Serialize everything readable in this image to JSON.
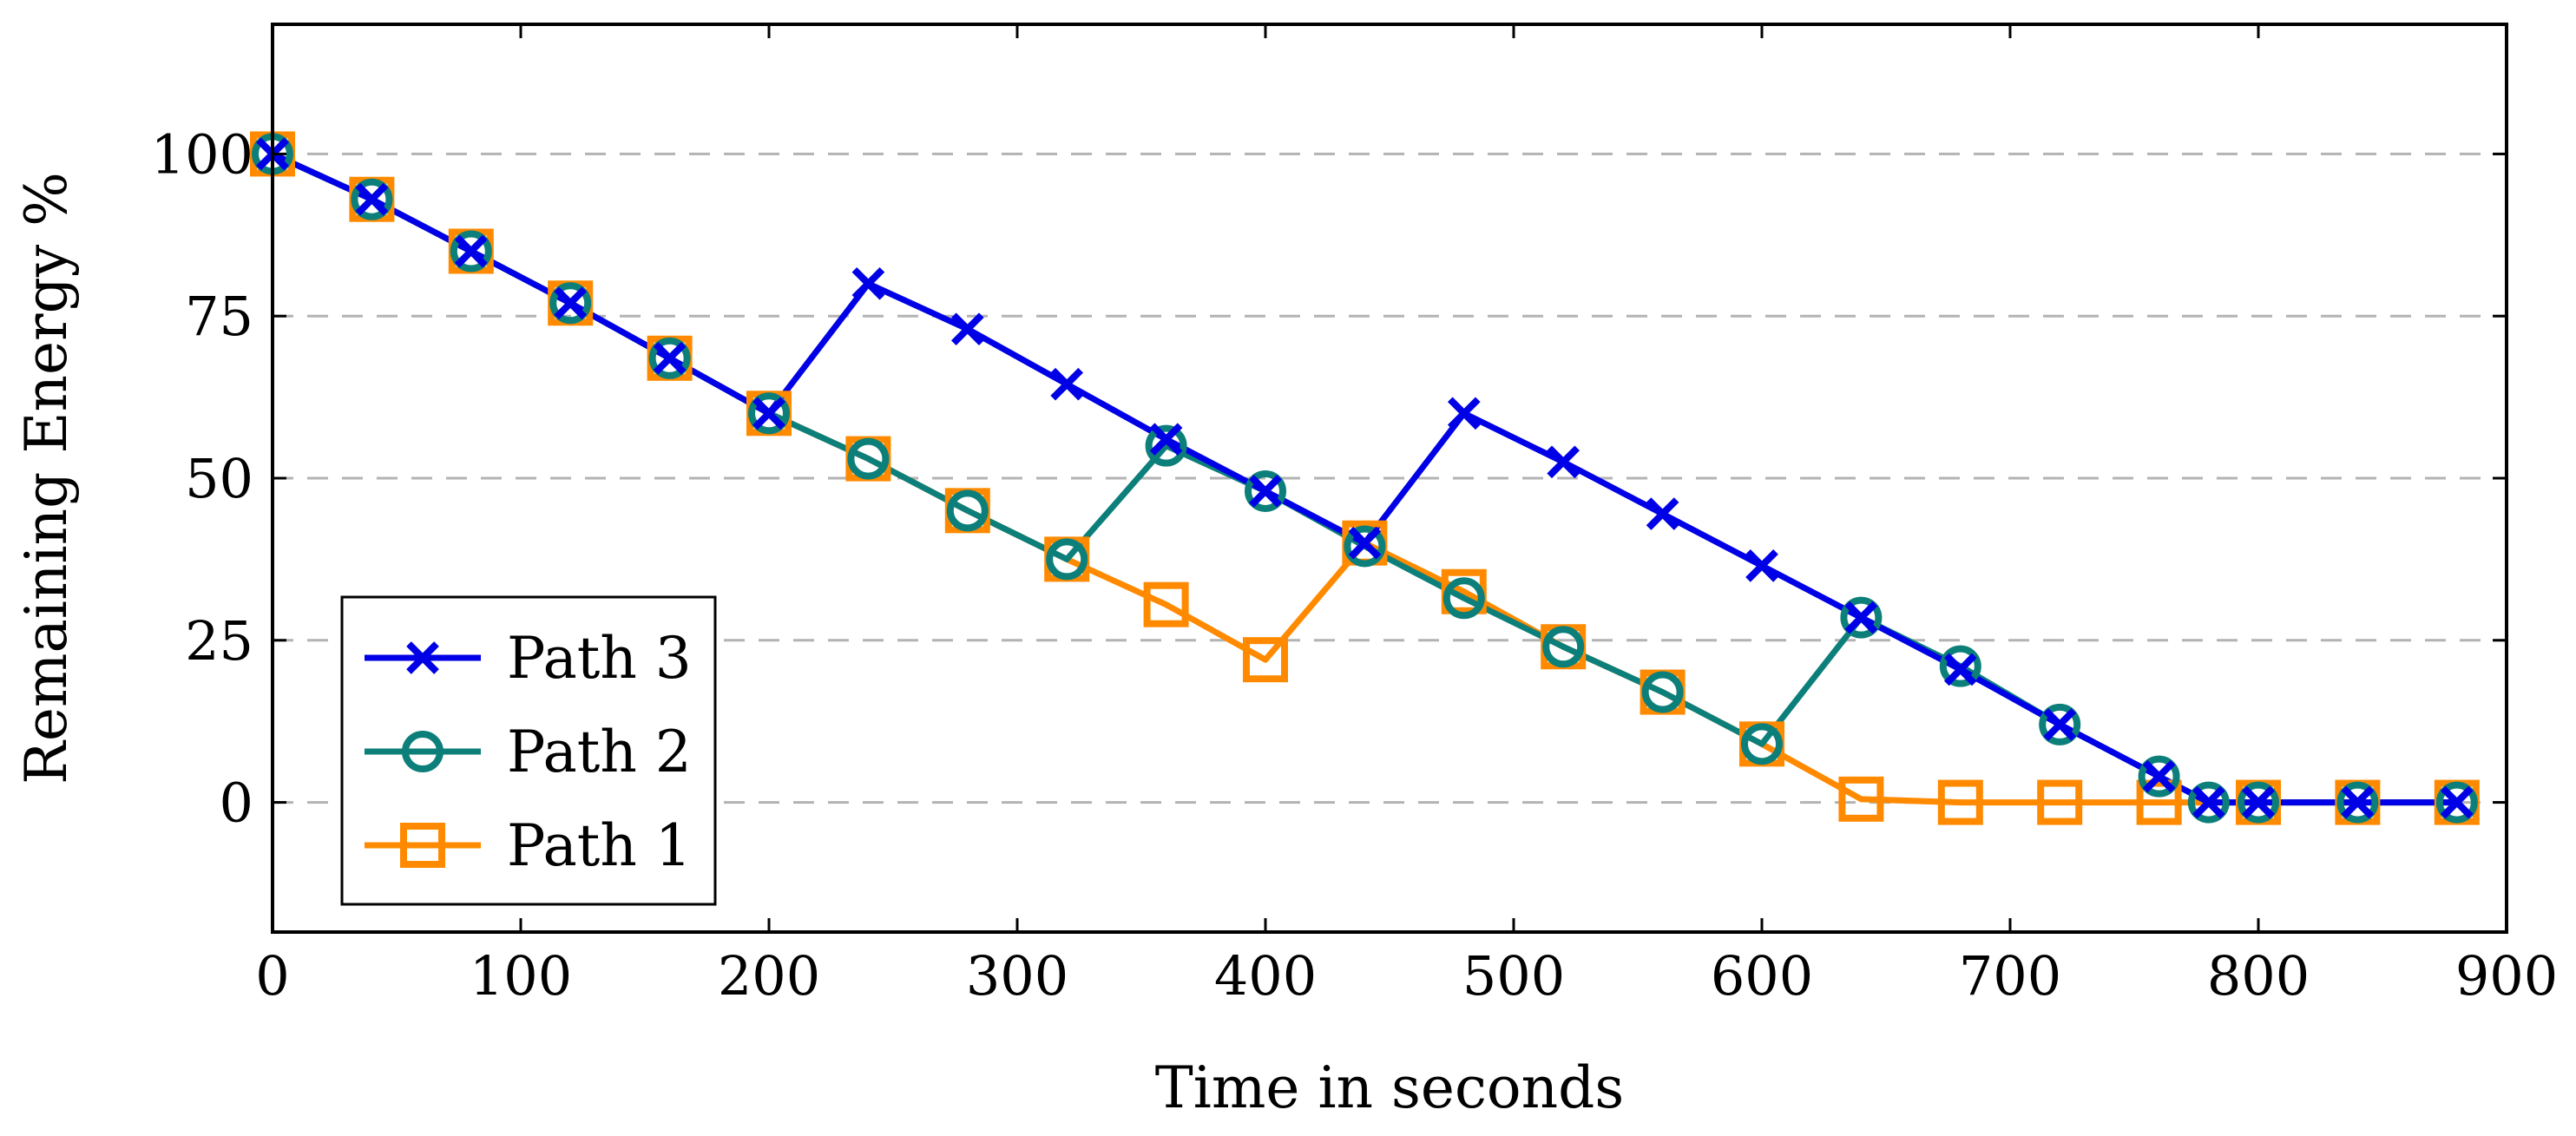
{
  "chart_data": {
    "type": "line",
    "title": "",
    "xlabel": "Time in seconds",
    "ylabel": "Remaining Energy %",
    "xlim": [
      0,
      900
    ],
    "ylim": [
      -20,
      120
    ],
    "xticks": [
      0,
      100,
      200,
      300,
      400,
      500,
      600,
      700,
      800,
      900
    ],
    "yticks": [
      0,
      25,
      50,
      75,
      100
    ],
    "grid": "horizontal-dashed",
    "legend_position": "bottom-left",
    "series": [
      {
        "name": "Path 3",
        "color": "#0000e6",
        "marker": "x",
        "x": [
          0,
          40,
          80,
          120,
          160,
          200,
          240,
          280,
          320,
          360,
          400,
          440,
          480,
          520,
          560,
          600,
          640,
          680,
          720,
          760,
          780,
          800,
          840,
          880
        ],
        "y": [
          100,
          93,
          85,
          77,
          68.5,
          60,
          80,
          73,
          64.5,
          56,
          48,
          40,
          60,
          52.5,
          44.5,
          36.5,
          28.5,
          20.5,
          12,
          4,
          0,
          0,
          0,
          0
        ]
      },
      {
        "name": "Path 2",
        "color": "#0d7f7a",
        "marker": "circle",
        "x": [
          0,
          40,
          80,
          120,
          160,
          200,
          240,
          280,
          320,
          360,
          400,
          440,
          480,
          520,
          560,
          600,
          640,
          680,
          720,
          760,
          780,
          800,
          840,
          880
        ],
        "y": [
          100,
          93,
          85,
          77,
          68.5,
          60,
          53,
          45,
          37.5,
          55,
          48,
          39.5,
          31.5,
          24,
          17,
          9,
          28.5,
          21,
          12,
          4,
          0,
          0,
          0,
          0
        ]
      },
      {
        "name": "Path 1",
        "color": "#ff8a00",
        "marker": "square",
        "x": [
          0,
          40,
          80,
          120,
          160,
          200,
          240,
          280,
          320,
          360,
          400,
          440,
          480,
          520,
          560,
          600,
          640,
          680,
          720,
          760,
          800,
          840,
          880
        ],
        "y": [
          100,
          93,
          85,
          77,
          68.5,
          60,
          53,
          45,
          37.5,
          30.5,
          22,
          40,
          32.5,
          24,
          17,
          9,
          0.5,
          0,
          0,
          0,
          0,
          0,
          0
        ]
      }
    ],
    "legend_order": [
      "Path 3",
      "Path 2",
      "Path 1"
    ]
  }
}
